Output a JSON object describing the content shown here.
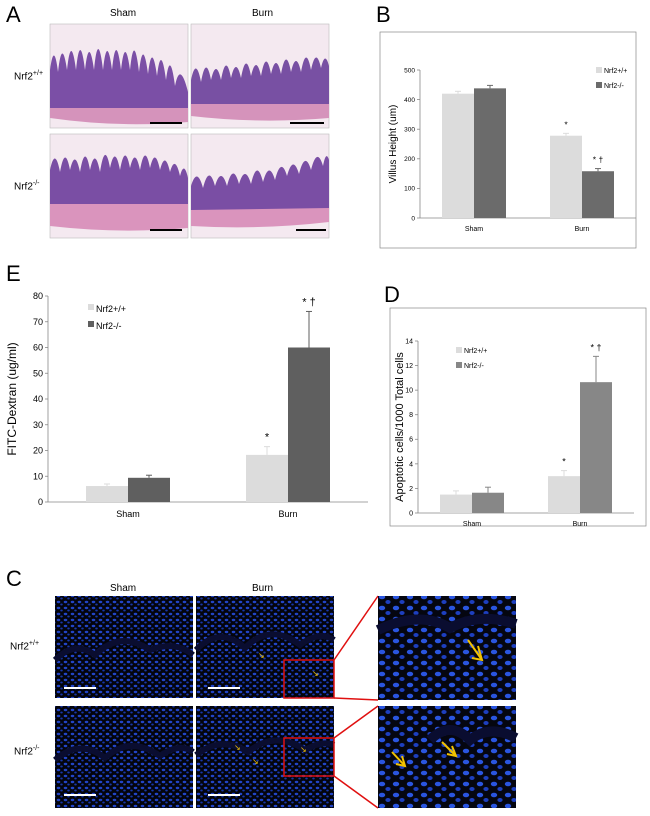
{
  "panels": {
    "A": {
      "letter": "A",
      "col_labels": [
        "Sham",
        "Burn"
      ],
      "row_labels": [
        {
          "base": "Nrf2",
          "sup": "+/+"
        },
        {
          "base": "Nrf2",
          "sup": "-/-"
        }
      ]
    },
    "C": {
      "letter": "C",
      "col_labels": [
        "Sham",
        "Burn"
      ],
      "row_labels": [
        {
          "base": "Nrf2",
          "sup": "+/+"
        },
        {
          "base": "Nrf2",
          "sup": "-/-"
        }
      ]
    }
  },
  "colors": {
    "wt": "#dcdcdc",
    "ko": "#6b6b6b",
    "he_bg": "#f3e6ee",
    "he_tissue": "#7a4fa0",
    "he_muscle": "#d98fb8",
    "fluor_bg": "#02030a",
    "fluor_nuclei": "#2647d8",
    "arrow": "#f2c200",
    "zoom_box": "#e01010"
  },
  "chart_data": [
    {
      "id": "B",
      "letter": "B",
      "type": "bar",
      "categories": [
        "Sham",
        "Burn"
      ],
      "ylabel": "Villus Height (um)",
      "ylim": [
        0,
        500
      ],
      "yticks": [
        0,
        100,
        200,
        300,
        400,
        500
      ],
      "series": [
        {
          "name": "Nrf2+/+",
          "values": [
            420,
            278
          ],
          "errors": [
            8,
            8
          ],
          "color": "#dcdcdc"
        },
        {
          "name": "Nrf2-/-",
          "values": [
            438,
            158
          ],
          "errors": [
            10,
            9
          ],
          "color": "#6b6b6b"
        }
      ],
      "annotations": [
        {
          "category": "Burn",
          "series": 0,
          "text": "*"
        },
        {
          "category": "Burn",
          "series": 1,
          "text": "*  †"
        }
      ],
      "legend": "top-right"
    },
    {
      "id": "E",
      "letter": "E",
      "type": "bar",
      "categories": [
        "Sham",
        "Burn"
      ],
      "ylabel": "FITC-Dextran (ug/ml)",
      "ylim": [
        0,
        80
      ],
      "yticks": [
        0,
        10,
        20,
        30,
        40,
        50,
        60,
        70,
        80
      ],
      "series": [
        {
          "name": "Nrf2+/+",
          "values": [
            6.2,
            18.3
          ],
          "errors": [
            0.8,
            3.2
          ],
          "color": "#dcdcdc"
        },
        {
          "name": "Nrf2-/-",
          "values": [
            9.4,
            60.0
          ],
          "errors": [
            1.0,
            14.0
          ],
          "color": "#5f5f5f"
        }
      ],
      "annotations": [
        {
          "category": "Burn",
          "series": 0,
          "text": "*"
        },
        {
          "category": "Burn",
          "series": 1,
          "text": "* †"
        }
      ],
      "legend": "top-left"
    },
    {
      "id": "D",
      "letter": "D",
      "type": "bar",
      "categories": [
        "Sham",
        "Burn"
      ],
      "ylabel": "Apoptotic cells/1000 Total cells",
      "ylim": [
        0,
        14
      ],
      "yticks": [
        0,
        2,
        4,
        6,
        8,
        10,
        12,
        14
      ],
      "series": [
        {
          "name": "Nrf2+/+",
          "values": [
            1.5,
            3.0
          ],
          "errors": [
            0.3,
            0.45
          ],
          "color": "#dcdcdc"
        },
        {
          "name": "Nrf2-/-",
          "values": [
            1.65,
            10.65
          ],
          "errors": [
            0.45,
            2.1
          ],
          "color": "#878787"
        }
      ],
      "annotations": [
        {
          "category": "Burn",
          "series": 0,
          "text": "*"
        },
        {
          "category": "Burn",
          "series": 1,
          "text": "*  †"
        }
      ],
      "legend": "top-left"
    }
  ]
}
